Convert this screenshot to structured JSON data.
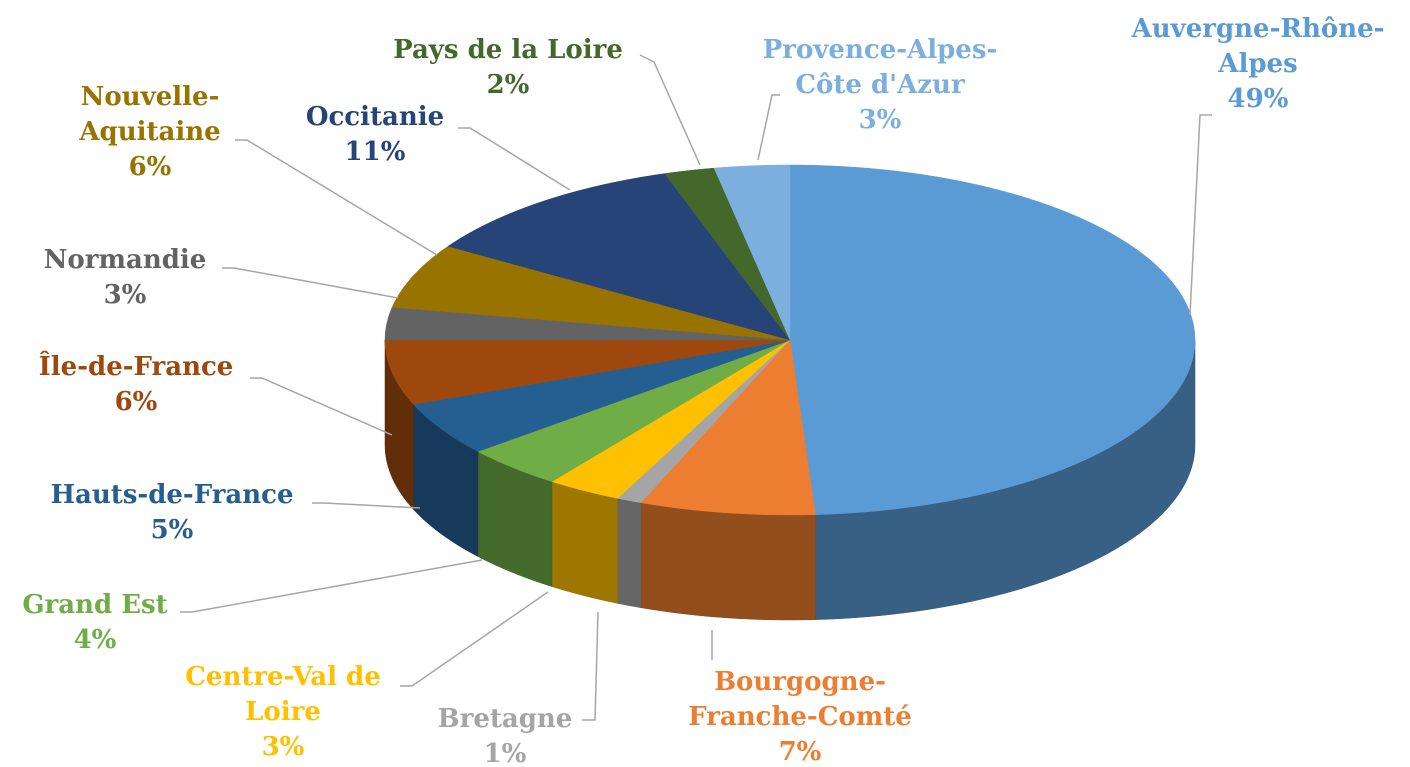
{
  "chart_data": {
    "type": "pie3d",
    "categories": [
      "Auvergne-Rhône-Alpes",
      "Bourgogne-Franche-Comté",
      "Bretagne",
      "Centre-Val de Loire",
      "Grand Est",
      "Hauts-de-France",
      "Île-de-France",
      "Normandie",
      "Nouvelle-Aquitaine",
      "Occitanie",
      "Pays de la Loire",
      "Provence-Alpes-Côte d'Azur"
    ],
    "values": [
      49,
      7,
      1,
      3,
      4,
      5,
      6,
      3,
      6,
      11,
      2,
      3
    ],
    "value_labels": [
      "49%",
      "7%",
      "1%",
      "3%",
      "4%",
      "5%",
      "6%",
      "3%",
      "6%",
      "11%",
      "2%",
      "3%"
    ],
    "colors": [
      "#5b9bd5",
      "#ed7d31",
      "#a5a5a5",
      "#ffc000",
      "#70ad47",
      "#255e91",
      "#9e480e",
      "#636363",
      "#997300",
      "#264478",
      "#43682b",
      "#7cafdd"
    ]
  }
}
